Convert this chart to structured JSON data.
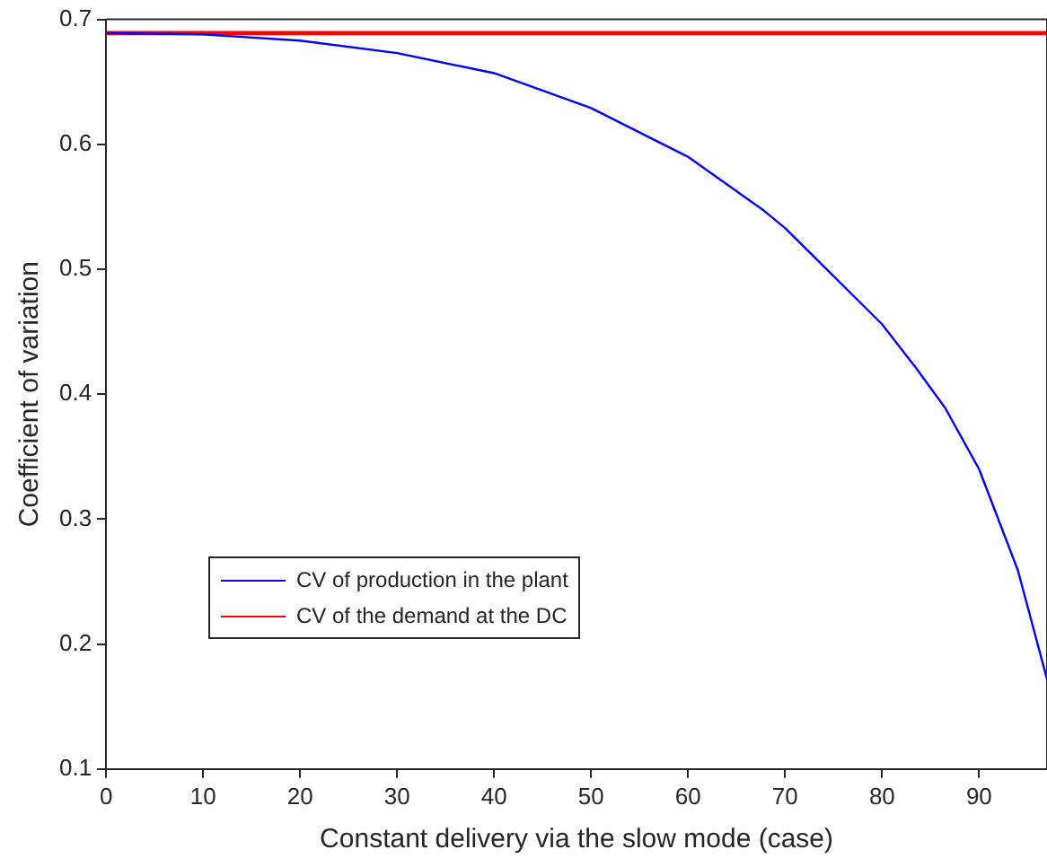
{
  "chart_data": {
    "type": "line",
    "xlabel": "Constant delivery via the slow mode (case)",
    "ylabel": "Coefficient of variation",
    "xlim": [
      0,
      97
    ],
    "xticks": [
      0,
      10,
      20,
      30,
      40,
      50,
      60,
      70,
      80,
      90
    ],
    "ylim": [
      0.1,
      0.7
    ],
    "yticks": [
      0.1,
      0.2,
      0.3,
      0.4,
      0.5,
      0.6,
      0.7
    ],
    "grid": false,
    "legend": "bottom left",
    "line_style": "solid",
    "marker": "none",
    "series": [
      {
        "name": "CV of production in the plant",
        "color": "#0000ff",
        "x": [
          0,
          10,
          20,
          30,
          40,
          50,
          60,
          67.8,
          70,
          80,
          83.4,
          86.5,
          90,
          94,
          97
        ],
        "values": [
          0.689,
          0.688,
          0.683,
          0.673,
          0.657,
          0.629,
          0.59,
          0.547,
          0.533,
          0.456,
          0.422,
          0.389,
          0.34,
          0.259,
          0.172
        ]
      },
      {
        "name": "CV of the demand at the DC",
        "color": "#ff0000",
        "x": [
          0,
          97
        ],
        "values": [
          0.689,
          0.689
        ]
      }
    ]
  }
}
